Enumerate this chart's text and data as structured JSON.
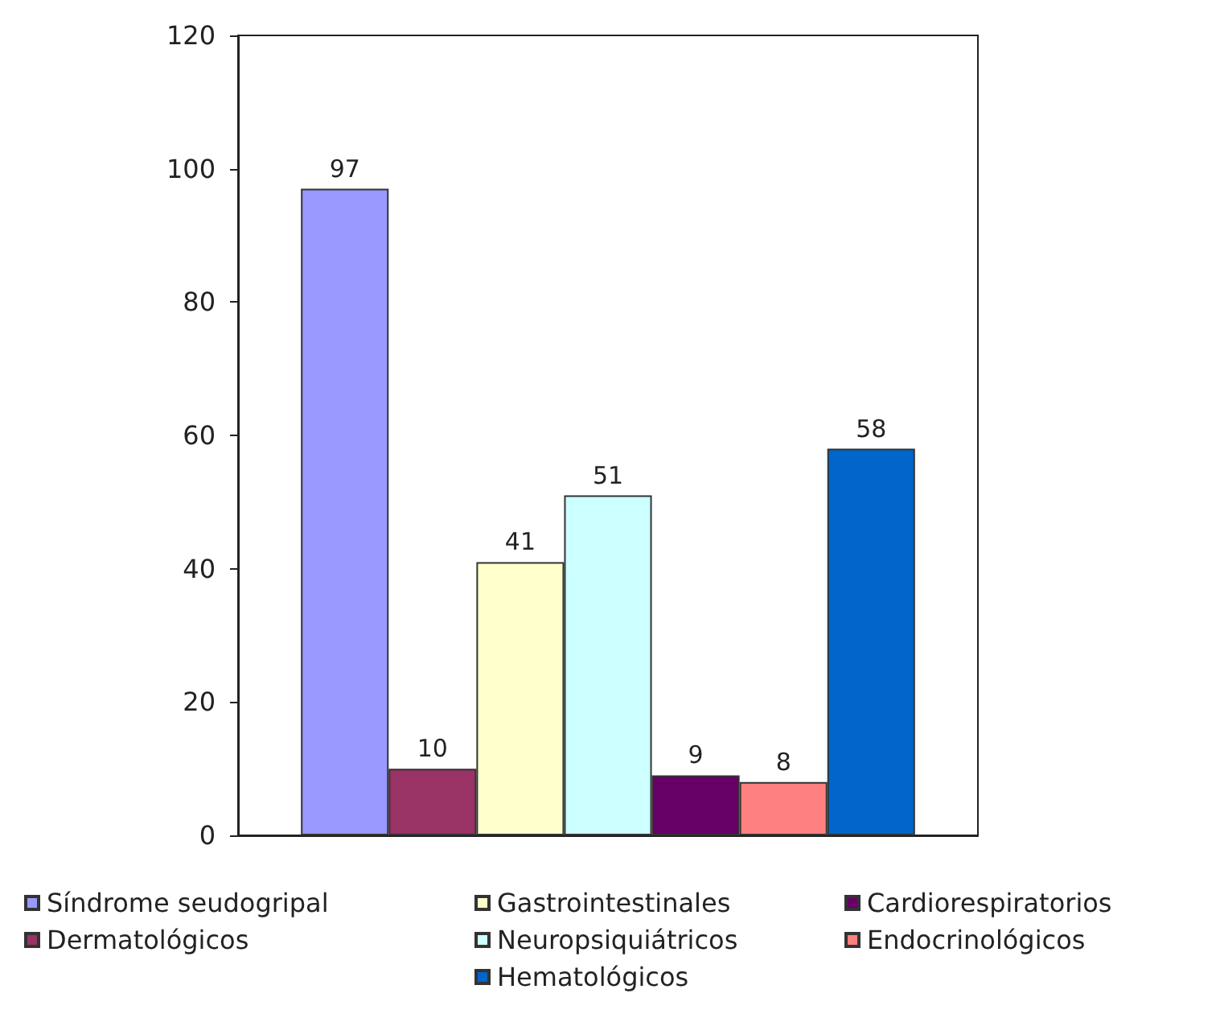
{
  "chart_data": {
    "type": "bar",
    "categories": [
      null
    ],
    "series": [
      {
        "name": "Síndrome seudogripal",
        "color": "#9999ff",
        "values": [
          97
        ]
      },
      {
        "name": "Dermatológicos",
        "color": "#993366",
        "values": [
          10
        ]
      },
      {
        "name": "Gastrointestinales",
        "color": "#ffffcc",
        "values": [
          41
        ]
      },
      {
        "name": "Neuropsiquiátricos",
        "color": "#ccffff",
        "values": [
          51
        ]
      },
      {
        "name": "Cardiorespiratorios",
        "color": "#660066",
        "values": [
          9
        ]
      },
      {
        "name": "Endocrinológicos",
        "color": "#ff8080",
        "values": [
          8
        ]
      },
      {
        "name": "Hematológicos",
        "color": "#0066cc",
        "values": [
          58
        ]
      }
    ],
    "ylim": [
      0,
      120
    ],
    "yticks": [
      0,
      20,
      40,
      60,
      80,
      100,
      120
    ],
    "grid": false,
    "legend": "bottom",
    "data_labels": true
  }
}
